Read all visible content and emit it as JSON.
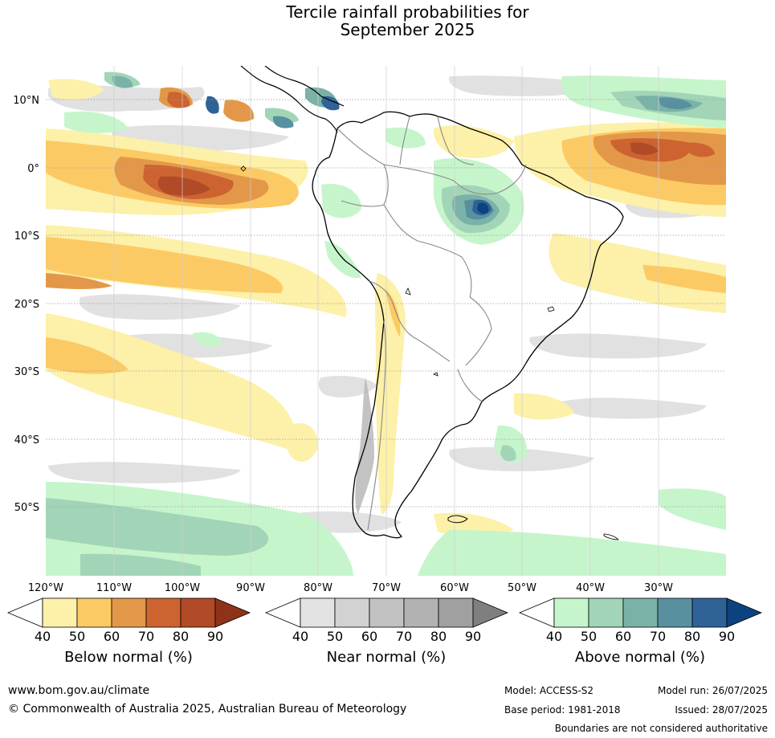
{
  "title": {
    "line1": "Tercile rainfall probabilities for",
    "line2": "September 2025"
  },
  "map": {
    "lat_labels": [
      "10°N",
      "0°",
      "10°S",
      "20°S",
      "30°S",
      "40°S",
      "50°S"
    ],
    "lon_labels": [
      "120°W",
      "110°W",
      "100°W",
      "90°W",
      "80°W",
      "70°W",
      "60°W",
      "50°W",
      "40°W",
      "30°W"
    ]
  },
  "colorbars": [
    {
      "label": "Below normal (%)",
      "ticks": [
        "40",
        "50",
        "60",
        "70",
        "80",
        "90"
      ],
      "colors": [
        "#fdf0a8",
        "#fcca64",
        "#e39849",
        "#cd6330",
        "#b04a27",
        "#8f321a"
      ]
    },
    {
      "label": "Near normal (%)",
      "ticks": [
        "40",
        "50",
        "60",
        "70",
        "80",
        "90"
      ],
      "colors": [
        "#e3e3e3",
        "#d2d2d2",
        "#c2c2c2",
        "#b2b2b2",
        "#a0a0a0",
        "#7f7f7f"
      ]
    },
    {
      "label": "Above normal (%)",
      "ticks": [
        "40",
        "50",
        "60",
        "70",
        "80",
        "90"
      ],
      "colors": [
        "#c6f5cb",
        "#a2d5b7",
        "#7bb2a8",
        "#5890a0",
        "#2f6296",
        "#0c437e"
      ]
    }
  ],
  "footer": {
    "url": "www.bom.gov.au/climate",
    "copyright": "© Commonwealth of Australia 2025, Australian Bureau of Meteorology",
    "model": "Model: ACCESS-S2",
    "model_run": "Model run: 26/07/2025",
    "base_period": "Base period: 1981-2018",
    "issued": "Issued: 28/07/2025",
    "disclaimer": "Boundaries are not considered authoritative"
  }
}
